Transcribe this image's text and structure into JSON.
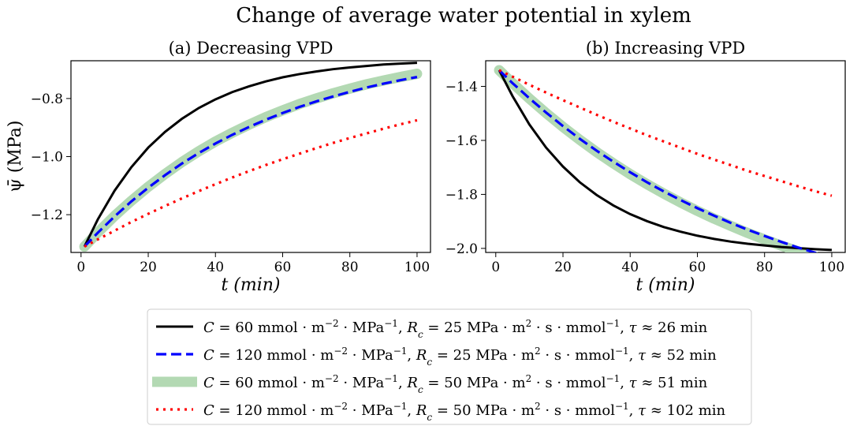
{
  "figure_title": "Change of average water potential in xylem",
  "shared_ylabel": "ψ̄ (MPa)",
  "chart_data": [
    {
      "type": "line",
      "title": "(a) Decreasing VPD",
      "xlabel": "t (min)",
      "ylabel": "ψ̄ (MPa)",
      "xlim": [
        -3,
        104
      ],
      "ylim": [
        -1.33,
        -0.67
      ],
      "xticks": [
        0,
        20,
        40,
        60,
        80,
        100
      ],
      "xtick_labels": [
        "0",
        "20",
        "40",
        "60",
        "80",
        "100"
      ],
      "yticks": [
        -1.2,
        -1.0,
        -0.8
      ],
      "ytick_labels": [
        "−1.2",
        "−1.0",
        "−0.8"
      ],
      "grid": false,
      "x": [
        1,
        5,
        10,
        15,
        20,
        25,
        30,
        35,
        40,
        45,
        50,
        55,
        60,
        65,
        70,
        75,
        80,
        85,
        90,
        95,
        100
      ],
      "series": [
        {
          "key": "s1",
          "values": [
            -1.31,
            -1.216,
            -1.117,
            -1.036,
            -0.969,
            -0.915,
            -0.87,
            -0.833,
            -0.803,
            -0.778,
            -0.758,
            -0.741,
            -0.727,
            -0.716,
            -0.707,
            -0.699,
            -0.693,
            -0.688,
            -0.683,
            -0.68,
            -0.677
          ]
        },
        {
          "key": "s2",
          "values": [
            -1.31,
            -1.262,
            -1.206,
            -1.154,
            -1.107,
            -1.064,
            -1.024,
            -0.988,
            -0.955,
            -0.925,
            -0.898,
            -0.873,
            -0.85,
            -0.829,
            -0.81,
            -0.793,
            -0.777,
            -0.762,
            -0.749,
            -0.737,
            -0.726
          ]
        },
        {
          "key": "s3",
          "values": [
            -1.31,
            -1.261,
            -1.204,
            -1.152,
            -1.104,
            -1.06,
            -1.019,
            -0.982,
            -0.948,
            -0.918,
            -0.89,
            -0.864,
            -0.841,
            -0.819,
            -0.8,
            -0.782,
            -0.766,
            -0.751,
            -0.738,
            -0.726,
            -0.715
          ]
        },
        {
          "key": "s4",
          "values": [
            -1.31,
            -1.285,
            -1.255,
            -1.225,
            -1.197,
            -1.17,
            -1.144,
            -1.119,
            -1.095,
            -1.072,
            -1.05,
            -1.029,
            -1.009,
            -0.99,
            -0.971,
            -0.953,
            -0.936,
            -0.92,
            -0.904,
            -0.889,
            -0.875
          ]
        }
      ]
    },
    {
      "type": "line",
      "title": "(b) Increasing VPD",
      "xlabel": "t (min)",
      "xlim": [
        -3,
        104
      ],
      "ylim": [
        -2.015,
        -1.305
      ],
      "xticks": [
        0,
        20,
        40,
        60,
        80,
        100
      ],
      "xtick_labels": [
        "0",
        "20",
        "40",
        "60",
        "80",
        "100"
      ],
      "yticks": [
        -2.0,
        -1.8,
        -1.6,
        -1.4
      ],
      "ytick_labels": [
        "−2.0",
        "−1.8",
        "−1.6",
        "−1.4"
      ],
      "grid": false,
      "x": [
        1,
        5,
        10,
        15,
        20,
        25,
        30,
        35,
        40,
        45,
        50,
        55,
        60,
        65,
        70,
        75,
        80,
        85,
        90,
        95,
        100
      ],
      "series": [
        {
          "key": "s1",
          "values": [
            -1.34,
            -1.436,
            -1.541,
            -1.627,
            -1.697,
            -1.755,
            -1.802,
            -1.841,
            -1.873,
            -1.899,
            -1.921,
            -1.938,
            -1.953,
            -1.965,
            -1.975,
            -1.983,
            -1.989,
            -1.995,
            -1.999,
            -2.003,
            -2.006
          ]
        },
        {
          "key": "s2",
          "values": [
            -1.34,
            -1.388,
            -1.444,
            -1.497,
            -1.547,
            -1.594,
            -1.638,
            -1.679,
            -1.718,
            -1.755,
            -1.789,
            -1.821,
            -1.851,
            -1.879,
            -1.906,
            -1.931,
            -1.954,
            -1.976,
            -1.997,
            -2.016,
            -2.034
          ]
        },
        {
          "key": "s3",
          "values": [
            -1.34,
            -1.388,
            -1.445,
            -1.499,
            -1.55,
            -1.598,
            -1.643,
            -1.685,
            -1.725,
            -1.762,
            -1.797,
            -1.83,
            -1.861,
            -1.89,
            -1.917,
            -1.943,
            -1.967,
            -1.99,
            -2.011,
            -2.031,
            -2.05
          ]
        },
        {
          "key": "s4",
          "values": [
            -1.34,
            -1.364,
            -1.394,
            -1.423,
            -1.451,
            -1.478,
            -1.505,
            -1.531,
            -1.556,
            -1.581,
            -1.604,
            -1.627,
            -1.65,
            -1.671,
            -1.692,
            -1.713,
            -1.732,
            -1.751,
            -1.77,
            -1.788,
            -1.805
          ]
        }
      ]
    }
  ],
  "legend": {
    "placement": "bottom-center",
    "entries": [
      {
        "key": "s1",
        "style": "solid",
        "color": "#000000",
        "C": "60",
        "Rc": "25",
        "tau": "26"
      },
      {
        "key": "s2",
        "style": "dashed",
        "color": "#0000ff",
        "C": "120",
        "Rc": "25",
        "tau": "52"
      },
      {
        "key": "s3",
        "style": "thick",
        "color": "#b3d9b3",
        "C": "60",
        "Rc": "50",
        "tau": "51"
      },
      {
        "key": "s4",
        "style": "dotted",
        "color": "#ff0000",
        "C": "120",
        "Rc": "50",
        "tau": "102"
      }
    ],
    "units": {
      "C": "mmol · m",
      "C_exp": "−2",
      "C_tail": " · MPa",
      "C_tail_exp": "−1",
      "Rc": "MPa · m",
      "Rc_exp": "2",
      "Rc_tail": " · s · mmol",
      "Rc_tail_exp": "−1",
      "tau": "min"
    },
    "symbols": {
      "C": "C",
      "Rc": "R",
      "Rc_sub": "c",
      "tau": "τ",
      "eq": "=",
      "approx": "≈"
    }
  },
  "colors": {
    "black": "#000000",
    "blue": "#0000ff",
    "green": "#b3d9b3",
    "red": "#ff0000"
  }
}
